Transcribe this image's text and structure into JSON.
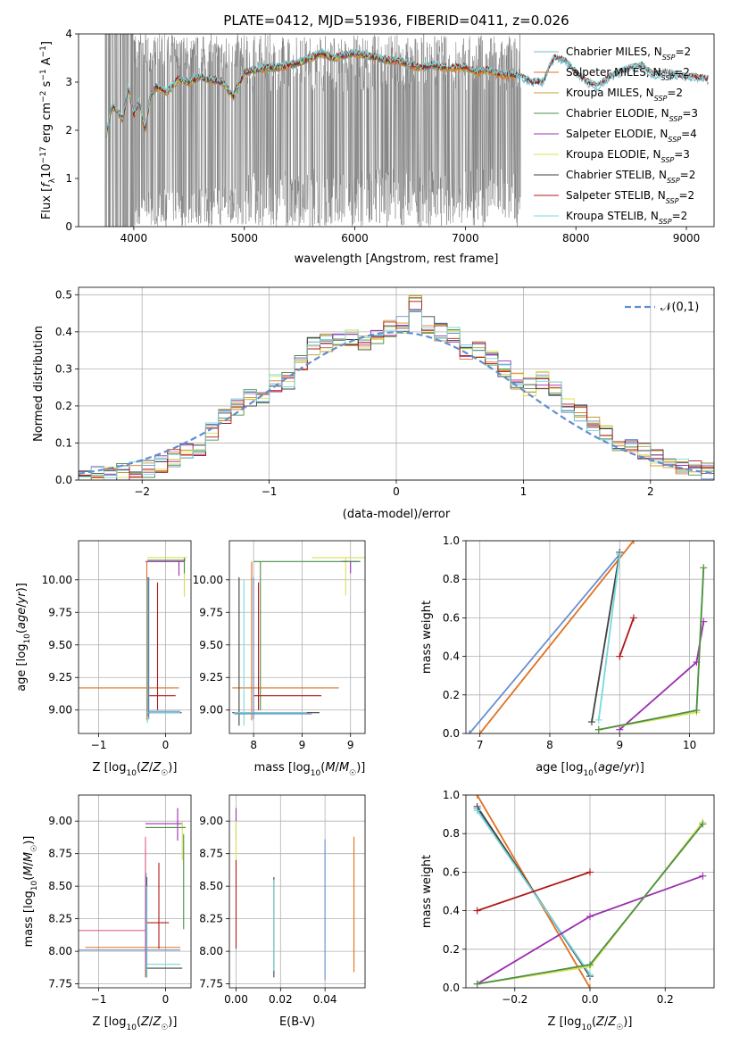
{
  "colors": [
    "#6a8fd0",
    "#e07020",
    "#c89a30",
    "#4a8f4a",
    "#9c2fb0",
    "#d8e050",
    "#404040",
    "#b01818",
    "#78d8d8",
    "#808080"
  ],
  "chart_data": [
    {
      "type": "line",
      "title": "PLATE=0412, MJD=51936, FIBERID=0411, z=0.026",
      "xlabel": "wavelength [Angstrom, rest frame]",
      "ylabel": "Flux [f_λ 10^-17 erg cm^-2 s^-1 A^-1]",
      "xlim": [
        3500,
        9250
      ],
      "ylim": [
        0,
        4
      ],
      "xticks": [
        4000,
        5000,
        6000,
        7000,
        8000,
        9000
      ],
      "yticks": [
        0,
        1,
        2,
        3,
        4
      ],
      "legend_position": "right",
      "series": [
        {
          "name": "Chabrier MILES, N_SSP=2",
          "color": "#78b8c8",
          "wave_range": [
            3750,
            9200
          ]
        },
        {
          "name": "Salpeter MILES, N_SSP=2",
          "color": "#e07020",
          "wave_range": [
            3750,
            7450
          ]
        },
        {
          "name": "Kroupa MILES, N_SSP=2",
          "color": "#c89a30",
          "wave_range": [
            3750,
            7450
          ]
        },
        {
          "name": "Chabrier ELODIE, N_SSP=3",
          "color": "#4a8f4a",
          "wave_range": [
            3750,
            6800
          ]
        },
        {
          "name": "Salpeter ELODIE, N_SSP=4",
          "color": "#9c2fb0",
          "wave_range": [
            3750,
            6800
          ]
        },
        {
          "name": "Kroupa ELODIE, N_SSP=3",
          "color": "#d8e050",
          "wave_range": [
            3750,
            6800
          ]
        },
        {
          "name": "Chabrier STELIB, N_SSP=2",
          "color": "#404040",
          "wave_range": [
            3750,
            9200
          ]
        },
        {
          "name": "Salpeter STELIB, N_SSP=2",
          "color": "#b01818",
          "wave_range": [
            3750,
            9200
          ]
        },
        {
          "name": "Kroupa STELIB, N_SSP=2",
          "color": "#78d8d8",
          "wave_range": [
            3750,
            9200
          ]
        }
      ],
      "model_curve": {
        "x": [
          3750,
          3800,
          3850,
          3900,
          3950,
          4000,
          4050,
          4100,
          4150,
          4200,
          4300,
          4400,
          4500,
          4600,
          4700,
          4800,
          4900,
          5000,
          5100,
          5200,
          5300,
          5400,
          5500,
          5600,
          5700,
          5800,
          5900,
          6000,
          6100,
          6200,
          6300,
          6400,
          6500,
          6600,
          6700,
          6800,
          6900,
          7000,
          7100,
          7200,
          7300,
          7400,
          7500,
          7600,
          7700,
          7800,
          7900,
          8000,
          8100,
          8200,
          8300,
          8400,
          8500,
          8600,
          8700,
          8800,
          8900,
          9000,
          9100,
          9200
        ],
        "y": [
          1.9,
          2.5,
          2.4,
          2.2,
          2.9,
          2.3,
          2.6,
          2.0,
          2.7,
          2.9,
          2.8,
          3.05,
          3.0,
          3.1,
          3.05,
          3.0,
          2.7,
          3.2,
          3.25,
          3.3,
          3.3,
          3.35,
          3.4,
          3.5,
          3.6,
          3.5,
          3.55,
          3.6,
          3.55,
          3.5,
          3.45,
          3.45,
          3.35,
          3.3,
          3.35,
          3.3,
          3.3,
          3.3,
          3.2,
          3.25,
          3.15,
          3.15,
          3.1,
          3.0,
          3.0,
          3.5,
          3.45,
          3.2,
          3.0,
          2.9,
          3.1,
          3.2,
          3.3,
          3.35,
          3.15,
          3.2,
          3.15,
          3.1,
          3.1,
          3.05
        ]
      },
      "data_curve": {
        "color": "#808080",
        "x_range": [
          3740,
          7500
        ],
        "band": [
          0,
          4
        ]
      }
    },
    {
      "type": "bar",
      "xlabel": "(data-model)/error",
      "ylabel": "Normed distribution",
      "xlim": [
        -2.5,
        2.5
      ],
      "ylim": [
        0,
        0.52
      ],
      "xticks": [
        -2,
        -1,
        0,
        1,
        2
      ],
      "yticks": [
        0.0,
        0.1,
        0.2,
        0.3,
        0.4,
        0.5
      ],
      "grid": true,
      "legend": "𝒩(0,1)",
      "legend_position": "top-right",
      "bin_edges": [
        -2.5,
        -2.4,
        -2.3,
        -2.2,
        -2.1,
        -2.0,
        -1.9,
        -1.8,
        -1.7,
        -1.6,
        -1.5,
        -1.4,
        -1.3,
        -1.2,
        -1.1,
        -1.0,
        -0.9,
        -0.8,
        -0.7,
        -0.6,
        -0.5,
        -0.4,
        -0.3,
        -0.2,
        -0.1,
        0.0,
        0.1,
        0.2,
        0.3,
        0.4,
        0.5,
        0.6,
        0.7,
        0.8,
        0.9,
        1.0,
        1.1,
        1.2,
        1.3,
        1.4,
        1.5,
        1.6,
        1.7,
        1.8,
        1.9,
        2.0,
        2.1,
        2.2,
        2.3,
        2.4,
        2.5
      ],
      "hist_values": [
        0.01,
        0.015,
        0.012,
        0.02,
        0.025,
        0.03,
        0.045,
        0.06,
        0.075,
        0.08,
        0.13,
        0.17,
        0.2,
        0.22,
        0.22,
        0.26,
        0.27,
        0.32,
        0.36,
        0.37,
        0.38,
        0.38,
        0.37,
        0.39,
        0.41,
        0.42,
        0.48,
        0.42,
        0.4,
        0.39,
        0.35,
        0.35,
        0.33,
        0.3,
        0.27,
        0.25,
        0.27,
        0.24,
        0.2,
        0.18,
        0.15,
        0.13,
        0.1,
        0.09,
        0.08,
        0.06,
        0.05,
        0.04,
        0.03,
        0.025
      ]
    },
    {
      "type": "scatter",
      "xlabel": "Z [log10(Z/Z☉)]",
      "ylabel": "age  [log10(age/yr)]",
      "xlim": [
        -1.3,
        0.38
      ],
      "ylim": [
        8.82,
        10.3
      ],
      "xticks": [
        -1,
        0
      ],
      "yticks": [
        9.0,
        9.25,
        9.5,
        9.75,
        10.0
      ],
      "note": "per-SSP error crosses"
    },
    {
      "type": "scatter",
      "xlabel": "mass [log10(M/M☉)]",
      "ylabel": "",
      "xlim": [
        7.75,
        9.15
      ],
      "ylim": [
        8.82,
        10.3
      ],
      "xticks": [
        8.0,
        8.5,
        9.0
      ],
      "yticks": [
        9.0,
        9.25,
        9.5,
        9.75,
        10.0
      ]
    },
    {
      "type": "line",
      "xlabel": "age  [log10(age/yr)]",
      "ylabel": "mass weight",
      "xlim": [
        6.8,
        10.35
      ],
      "ylim": [
        0,
        1
      ],
      "xticks": [
        7,
        8,
        9,
        10
      ],
      "yticks": [
        0.0,
        0.2,
        0.4,
        0.6,
        0.8,
        1.0
      ],
      "grid": true,
      "series": [
        {
          "color": "#6a8fd0",
          "x": [
            6.85,
            9.0
          ],
          "y": [
            0.0,
            0.93
          ]
        },
        {
          "color": "#e07020",
          "x": [
            7.0,
            9.2
          ],
          "y": [
            0.0,
            1.0
          ]
        },
        {
          "color": "#404040",
          "x": [
            8.6,
            9.0
          ],
          "y": [
            0.06,
            0.94
          ]
        },
        {
          "color": "#78d8d8",
          "x": [
            8.7,
            9.0
          ],
          "y": [
            0.07,
            0.93
          ]
        },
        {
          "color": "#b01818",
          "x": [
            9.0,
            9.2
          ],
          "y": [
            0.4,
            0.6
          ]
        },
        {
          "color": "#9c2fb0",
          "x": [
            9.0,
            10.1,
            10.2
          ],
          "y": [
            0.02,
            0.37,
            0.58
          ]
        },
        {
          "color": "#d8e050",
          "x": [
            8.7,
            10.1,
            10.2
          ],
          "y": [
            0.02,
            0.11,
            0.86
          ]
        },
        {
          "color": "#4a8f4a",
          "x": [
            8.7,
            10.1,
            10.2
          ],
          "y": [
            0.02,
            0.12,
            0.86
          ]
        }
      ]
    },
    {
      "type": "scatter",
      "xlabel": "Z [log10(Z/Z☉)]",
      "ylabel": "mass [log10(M/M☉)]",
      "xlim": [
        -1.3,
        0.38
      ],
      "ylim": [
        7.72,
        9.2
      ],
      "xticks": [
        -1,
        0
      ],
      "yticks": [
        7.75,
        8.0,
        8.25,
        8.5,
        8.75,
        9.0
      ]
    },
    {
      "type": "scatter",
      "xlabel": "E(B-V)",
      "ylabel": "",
      "xlim": [
        -0.003,
        0.058
      ],
      "ylim": [
        7.72,
        9.2
      ],
      "xticks": [
        0.0,
        0.02,
        0.04
      ],
      "yticks": [
        7.75,
        8.0,
        8.25,
        8.5,
        8.75,
        9.0
      ]
    },
    {
      "type": "line",
      "xlabel": "Z [log10(Z/Z☉)]",
      "ylabel": "mass weight",
      "xlim": [
        -0.33,
        0.33
      ],
      "ylim": [
        0,
        1
      ],
      "xticks": [
        -0.2,
        0.0,
        0.2
      ],
      "yticks": [
        0.0,
        0.2,
        0.4,
        0.6,
        0.8,
        1.0
      ],
      "grid": true,
      "series": [
        {
          "color": "#6a8fd0",
          "x": [
            -0.3,
            0.0
          ],
          "y": [
            0.93,
            0.06
          ]
        },
        {
          "color": "#e07020",
          "x": [
            -0.3,
            0.0
          ],
          "y": [
            1.0,
            0.0
          ]
        },
        {
          "color": "#404040",
          "x": [
            -0.3,
            0.0
          ],
          "y": [
            0.94,
            0.06
          ]
        },
        {
          "color": "#78d8d8",
          "x": [
            -0.3,
            0.0
          ],
          "y": [
            0.92,
            0.07
          ]
        },
        {
          "color": "#b01818",
          "x": [
            -0.3,
            0.0
          ],
          "y": [
            0.4,
            0.6
          ]
        },
        {
          "color": "#9c2fb0",
          "x": [
            -0.3,
            0.0,
            0.3
          ],
          "y": [
            0.02,
            0.37,
            0.58
          ]
        },
        {
          "color": "#d8e050",
          "x": [
            -0.3,
            0.0,
            0.3
          ],
          "y": [
            0.02,
            0.11,
            0.86
          ]
        },
        {
          "color": "#4a8f4a",
          "x": [
            -0.3,
            0.0,
            0.3
          ],
          "y": [
            0.02,
            0.12,
            0.85
          ]
        }
      ]
    }
  ],
  "labels": {
    "title": "PLATE=0412, MJD=51936, FIBERID=0411, z=0.026"
  }
}
